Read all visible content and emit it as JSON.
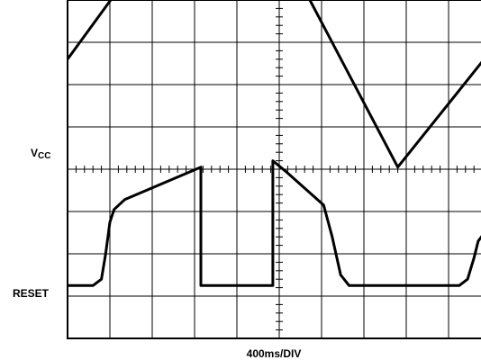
{
  "chart_data": {
    "type": "line",
    "title": "",
    "xlabel": "400ms/DIV",
    "ylabel": "",
    "grid": true,
    "x_divisions": 10,
    "y_divisions": 8,
    "channel_labels": [
      {
        "name": "vcc",
        "main": "V",
        "sub": "CC"
      },
      {
        "name": "reset",
        "main": "RESET",
        "sub": ""
      }
    ],
    "series": [
      {
        "points": [
          [
            0,
            2.6
          ],
          [
            3.75,
            7.75
          ],
          [
            7.8,
            0.05
          ],
          [
            10,
            2.8
          ]
        ]
      },
      {
        "points": [
          [
            0,
            -2.75
          ],
          [
            0.6,
            -2.75
          ],
          [
            0.8,
            -2.6
          ],
          [
            0.9,
            -2.0
          ],
          [
            1.0,
            -1.25
          ],
          [
            1.1,
            -0.95
          ],
          [
            1.35,
            -0.72
          ],
          [
            3.15,
            0.05
          ],
          [
            3.15,
            -2.75
          ],
          [
            4.85,
            -2.75
          ],
          [
            4.85,
            0.2
          ],
          [
            5.15,
            -0.05
          ],
          [
            6.05,
            -0.85
          ],
          [
            6.25,
            -1.6
          ],
          [
            6.45,
            -2.5
          ],
          [
            6.65,
            -2.75
          ],
          [
            9.25,
            -2.75
          ],
          [
            9.45,
            -2.6
          ],
          [
            9.6,
            -2.1
          ],
          [
            9.7,
            -1.7
          ],
          [
            9.85,
            -1.5
          ],
          [
            10,
            -1.35
          ]
        ]
      }
    ]
  }
}
